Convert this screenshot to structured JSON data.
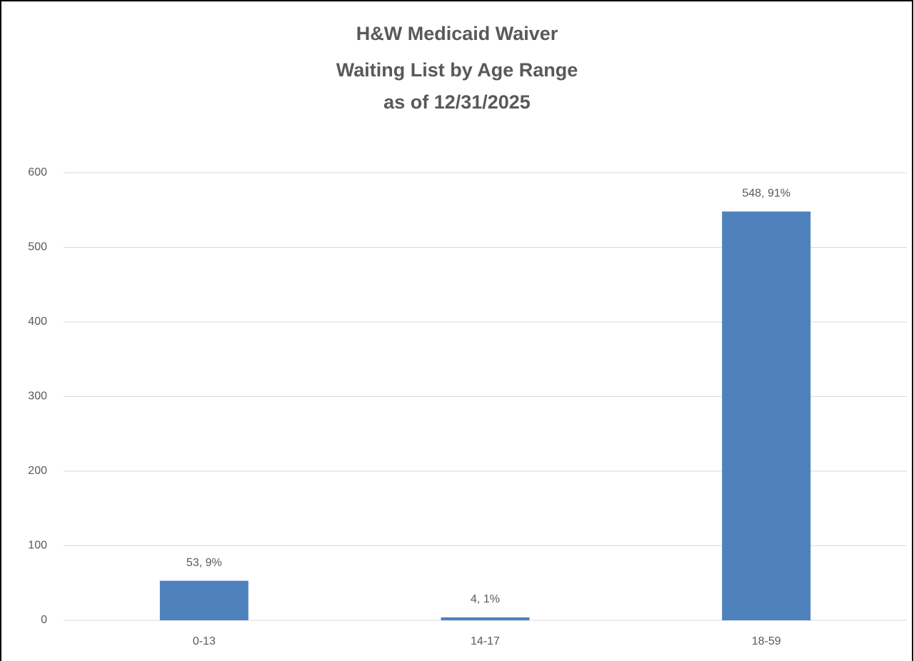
{
  "chart_data": {
    "type": "bar",
    "title": [
      "H&W Medicaid Waiver",
      "Waiting List by Age Range",
      "as of 12/31/2025"
    ],
    "categories": [
      "0-13",
      "14-17",
      "18-59"
    ],
    "values": [
      53,
      4,
      548
    ],
    "value_labels": [
      "53, 9%",
      "4, 1%",
      "548, 91%"
    ],
    "color": "#4f81bd",
    "ylim": [
      0,
      600
    ],
    "yticks": [
      0,
      100,
      200,
      300,
      400,
      500,
      600
    ],
    "grid": true
  }
}
